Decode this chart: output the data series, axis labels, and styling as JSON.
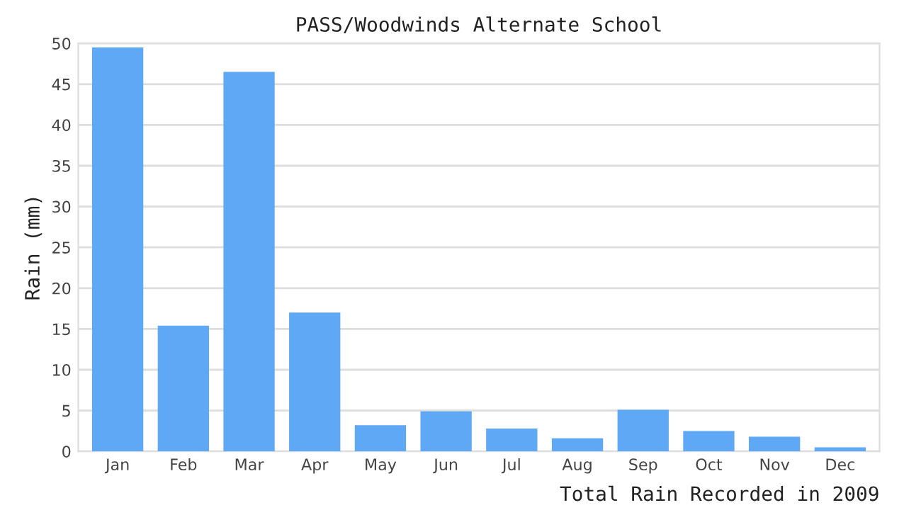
{
  "chart_data": {
    "type": "bar",
    "title": "PASS/Woodwinds Alternate School",
    "ylabel": "Rain (mm)",
    "categories": [
      "Jan",
      "Feb",
      "Mar",
      "Apr",
      "May",
      "Jun",
      "Jul",
      "Aug",
      "Sep",
      "Oct",
      "Nov",
      "Dec"
    ],
    "values": [
      49.5,
      15.4,
      46.5,
      17.0,
      3.2,
      4.9,
      2.8,
      1.6,
      5.1,
      2.5,
      1.8,
      0.5
    ],
    "color": "#5fa8f5",
    "ylim": [
      0,
      50
    ],
    "yticks": [
      0,
      5,
      10,
      15,
      20,
      25,
      30,
      35,
      40,
      45,
      50
    ],
    "grid": "y",
    "annotations": [
      "Total Rain Recorded in 2009"
    ]
  }
}
